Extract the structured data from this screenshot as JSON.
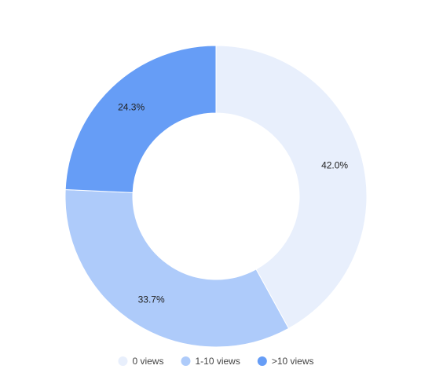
{
  "chart_data": {
    "type": "donut",
    "categories": [
      "0 views",
      "1-10 views",
      ">10 views"
    ],
    "values": [
      42.0,
      33.7,
      24.3
    ],
    "value_labels": [
      "42.0%",
      "33.7%",
      "24.3%"
    ],
    "colors": [
      "#e8effc",
      "#aecbfa",
      "#669df6"
    ],
    "legend": "bottom"
  }
}
